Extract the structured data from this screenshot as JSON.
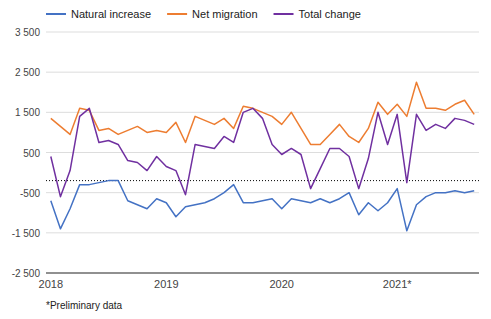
{
  "chart_data": {
    "type": "line",
    "categories": [
      "2018",
      null,
      null,
      null,
      null,
      null,
      null,
      null,
      null,
      null,
      null,
      null,
      "2019",
      null,
      null,
      null,
      null,
      null,
      null,
      null,
      null,
      null,
      null,
      null,
      "2020",
      null,
      null,
      null,
      null,
      null,
      null,
      null,
      null,
      null,
      null,
      null,
      "2021*",
      null,
      null,
      null,
      null,
      null,
      null,
      null,
      null
    ],
    "series": [
      {
        "name": "Natural increase",
        "color": "#4472C4",
        "values": [
          -700,
          -1400,
          -900,
          -300,
          -300,
          -250,
          -200,
          -200,
          -700,
          -800,
          -900,
          -650,
          -750,
          -1100,
          -850,
          -800,
          -750,
          -650,
          -500,
          -300,
          -750,
          -750,
          -700,
          -650,
          -900,
          -650,
          -700,
          -750,
          -650,
          -750,
          -650,
          -500,
          -1050,
          -750,
          -950,
          -750,
          -400,
          -1450,
          -800,
          -600,
          -500,
          -500,
          -450,
          -500,
          -450
        ]
      },
      {
        "name": "Net migration",
        "color": "#ED7D31",
        "values": [
          1350,
          1150,
          950,
          1600,
          1550,
          1050,
          1100,
          950,
          1050,
          1150,
          1000,
          1050,
          1000,
          1250,
          750,
          1400,
          1300,
          1200,
          1350,
          1100,
          1650,
          1600,
          1500,
          1400,
          1200,
          1500,
          1100,
          700,
          700,
          950,
          1200,
          900,
          750,
          1100,
          1750,
          1450,
          1700,
          1400,
          2250,
          1600,
          1600,
          1550,
          1700,
          1800,
          1450
        ]
      },
      {
        "name": "Total change",
        "color": "#7030A0",
        "values": [
          400,
          -600,
          50,
          1400,
          1600,
          750,
          800,
          700,
          300,
          250,
          50,
          400,
          150,
          50,
          -550,
          700,
          650,
          600,
          900,
          750,
          1500,
          1600,
          1350,
          700,
          450,
          600,
          450,
          -400,
          100,
          600,
          600,
          400,
          -400,
          350,
          1500,
          700,
          1450,
          -250,
          1450,
          1050,
          1200,
          1100,
          1350,
          1300,
          1200
        ]
      }
    ],
    "ylim": [
      -2500,
      3500
    ],
    "yticks": [
      {
        "value": -2500,
        "label": "-2 500"
      },
      {
        "value": -1500,
        "label": "-1 500"
      },
      -500,
      500,
      {
        "value": 1500,
        "label": "1 500"
      },
      {
        "value": 2500,
        "label": "2 500"
      },
      {
        "value": 3500,
        "label": "3 500"
      }
    ],
    "reference_line": {
      "y": -200,
      "color": "#000000",
      "line_style": "dotted"
    },
    "grid": true,
    "legend": "top-left",
    "annotations": [
      "*Preliminary data"
    ]
  }
}
